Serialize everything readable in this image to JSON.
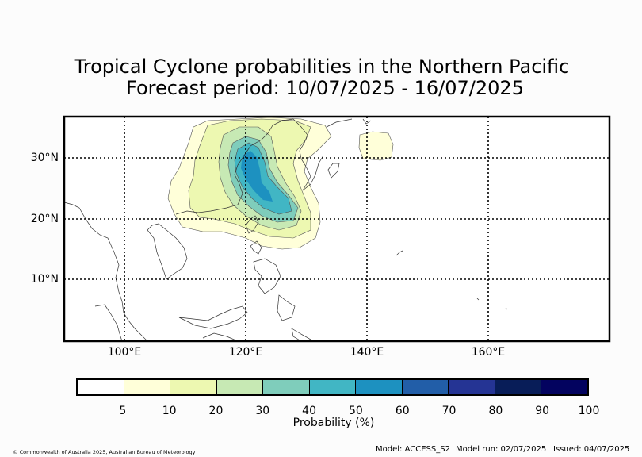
{
  "title": {
    "line1": "Tropical Cyclone probabilities in the Northern Pacific",
    "line2": "Forecast period: 10/07/2025 - 16/07/2025"
  },
  "map": {
    "region": "Northern Pacific",
    "lat_range": [
      0,
      37
    ],
    "lon_range": [
      90,
      180
    ],
    "lat_labels": [
      "30°N",
      "20°N",
      "10°N"
    ],
    "lon_labels": [
      "100°E",
      "120°E",
      "140°E",
      "160°E"
    ],
    "gridlines": "dotted",
    "probability_field": {
      "description_levels": [
        5,
        10,
        20,
        30,
        40,
        50
      ],
      "peak_range_percent": [
        40,
        50
      ]
    }
  },
  "colorbar": {
    "label": "Probability (%)",
    "ticks": [
      "5",
      "10",
      "20",
      "30",
      "40",
      "50",
      "60",
      "70",
      "80",
      "90",
      "100"
    ],
    "colors": [
      "#ffffff",
      "#ffffd9",
      "#edf8b1",
      "#c7e9b4",
      "#7fcdbb",
      "#41b6c4",
      "#1d91c0",
      "#225ea8",
      "#253494",
      "#081d58",
      "#03035f"
    ]
  },
  "footer": {
    "copyright": "© Commonwealth of Australia 2025, Australian Bureau of Meteorology",
    "model": "Model: ACCESS_S2",
    "model_run": "Model run: 02/07/2025",
    "issued": "Issued: 04/07/2025"
  }
}
